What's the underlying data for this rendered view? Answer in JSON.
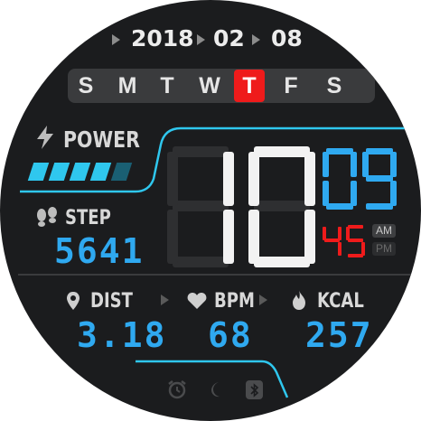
{
  "date": {
    "year": "2018",
    "month": "02",
    "day": "08"
  },
  "weekdays": [
    {
      "label": "S",
      "active": false
    },
    {
      "label": "M",
      "active": false
    },
    {
      "label": "T",
      "active": false
    },
    {
      "label": "W",
      "active": false
    },
    {
      "label": "T",
      "active": true
    },
    {
      "label": "F",
      "active": false
    },
    {
      "label": "S",
      "active": false
    }
  ],
  "power": {
    "label": "POWER",
    "level_segments_filled": 4,
    "level_segments_total": 5
  },
  "step": {
    "label": "STEP",
    "value": "5641"
  },
  "time": {
    "hour": "10",
    "minute": "09",
    "second": "45",
    "am_label": "AM",
    "pm_label": "PM",
    "am_active": true
  },
  "stats": {
    "dist": {
      "label": "DIST",
      "value": "3.18"
    },
    "bpm": {
      "label": "BPM",
      "value": "68"
    },
    "kcal": {
      "label": "KCAL",
      "value": "257"
    }
  },
  "bottom_icons": [
    "alarm-icon",
    "moon-icon",
    "bluetooth-icon"
  ],
  "colors": {
    "accent": "#2fa9f0",
    "cyan": "#2fc7ee",
    "red": "#ef1b1b",
    "face": "#1b1c1e"
  }
}
